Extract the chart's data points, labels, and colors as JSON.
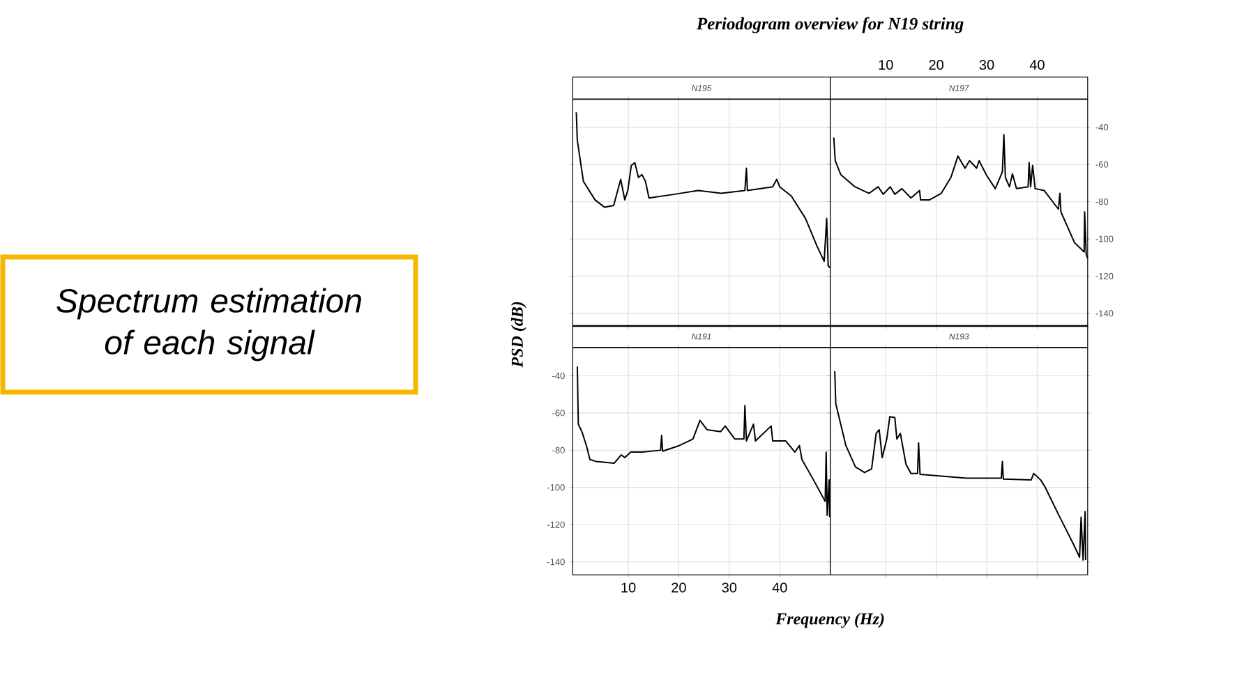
{
  "chart_data": [
    {
      "type": "line",
      "title": "N195",
      "annotations": [
        "Periodogram overview for N19 string",
        "Spectrum estimation of each signal"
      ],
      "xlim": [
        -1,
        50
      ],
      "ylim": [
        -147,
        -25
      ],
      "xticks": [
        10,
        20,
        30,
        40
      ],
      "yticks": [
        -140,
        -120,
        -100,
        -80,
        -60,
        -40
      ],
      "grid": true,
      "tick_labels": false,
      "color": "#000000",
      "x": [
        -0.3,
        -0.1,
        1.1,
        3.4,
        5.3,
        7.1,
        7.9,
        8.5,
        9.3,
        9.9,
        10.6,
        11.3,
        12,
        12.7,
        13.4,
        14.1,
        19.2,
        23.8,
        28.4,
        33.1,
        33.4,
        33.6,
        38.6,
        39.4,
        40,
        42.3,
        45.1,
        47.4,
        48.8,
        49.3,
        49.6,
        50
      ],
      "values": [
        -32,
        -47,
        -69,
        -79,
        -83,
        -82,
        -74,
        -68,
        -79,
        -74,
        -60.5,
        -59,
        -67,
        -65.5,
        -69,
        -78,
        -76,
        -74,
        -75.5,
        -74,
        -62,
        -74,
        -72,
        -68,
        -72,
        -77,
        -89,
        -104,
        -112,
        -89,
        -114.5,
        -115.5
      ]
    },
    {
      "type": "line",
      "title": "N197",
      "xlim": [
        -1,
        50
      ],
      "ylim": [
        -147,
        -25
      ],
      "xticks": [
        10,
        20,
        30,
        40
      ],
      "yticks": [
        -140,
        -120,
        -100,
        -80,
        -60,
        -40
      ],
      "grid": true,
      "color": "#000000",
      "x": [
        -0.3,
        0,
        1.1,
        3.9,
        6.7,
        8.5,
        9.5,
        10.9,
        11.8,
        13.2,
        15,
        16.7,
        16.9,
        18.7,
        21,
        22.9,
        24.3,
        25.7,
        26.6,
        28,
        28.5,
        29.9,
        31.7,
        33.1,
        33.4,
        33.7,
        34.5,
        35.1,
        35.9,
        38.2,
        38.4,
        38.7,
        39.1,
        39.6,
        41.4,
        44.2,
        44.5,
        44.7,
        47.4,
        49.3,
        49.4,
        49.7,
        50
      ],
      "values": [
        -45.5,
        -58,
        -65.5,
        -72,
        -75.5,
        -72,
        -76,
        -72,
        -76,
        -73,
        -78,
        -74,
        -79,
        -79,
        -75.5,
        -67,
        -55.5,
        -62,
        -58,
        -62,
        -58,
        -65.5,
        -73,
        -64,
        -44,
        -67,
        -72,
        -65,
        -73,
        -72,
        -59,
        -72,
        -60.5,
        -73,
        -74,
        -84,
        -75.5,
        -85.5,
        -102,
        -107,
        -85.5,
        -108,
        -110.5
      ]
    },
    {
      "type": "line",
      "title": "N191",
      "xlabel": "Frequency (Hz)",
      "ylabel": "PSD (dB)",
      "xlim": [
        -1,
        50
      ],
      "ylim": [
        -147,
        -25
      ],
      "xticks": [
        10,
        20,
        30,
        40
      ],
      "yticks": [
        -140,
        -120,
        -100,
        -80,
        -60,
        -40
      ],
      "grid": true,
      "color": "#000000",
      "x": [
        -0.1,
        0.1,
        0.8,
        1.7,
        2.4,
        3.6,
        7.2,
        8.6,
        9.3,
        10.5,
        12.8,
        16.4,
        16.6,
        16.8,
        20.1,
        22.8,
        24.2,
        25.6,
        28.3,
        29.2,
        31.1,
        32.9,
        33.1,
        33.4,
        34.8,
        35.2,
        38.3,
        38.6,
        41.2,
        43,
        43.9,
        44.4,
        46.7,
        49,
        49.2,
        49.4,
        49.8,
        49.9
      ],
      "values": [
        -35,
        -66,
        -70,
        -77.5,
        -85,
        -86,
        -87,
        -82.5,
        -84,
        -81,
        -81,
        -80,
        -72,
        -80.5,
        -77.5,
        -74,
        -64,
        -69,
        -70,
        -67,
        -74,
        -74,
        -56,
        -75,
        -66,
        -75,
        -67,
        -75,
        -75,
        -81,
        -77.5,
        -85,
        -96,
        -107.5,
        -81,
        -115,
        -96,
        -116
      ]
    },
    {
      "type": "line",
      "title": "N193",
      "xlim": [
        -1,
        50
      ],
      "ylim": [
        -147,
        -25
      ],
      "xticks": [
        10,
        20,
        30,
        40
      ],
      "yticks": [
        -140,
        -120,
        -100,
        -80,
        -60,
        -40
      ],
      "grid": true,
      "tick_labels": false,
      "color": "#000000",
      "x": [
        -0.1,
        0.1,
        2.1,
        4,
        5.8,
        7.2,
        8.1,
        8.7,
        9.3,
        10.2,
        10.8,
        11.8,
        12.2,
        12.9,
        14,
        15,
        16.3,
        16.5,
        16.8,
        21.4,
        26,
        32.9,
        33.1,
        33.3,
        38.8,
        39.3,
        40.7,
        41.6,
        44.3,
        47.1,
        48.4,
        48.7,
        49.1,
        49.5,
        49.6
      ],
      "values": [
        -37.5,
        -55,
        -77.5,
        -89,
        -92,
        -90,
        -71,
        -69,
        -84,
        -74,
        -62,
        -62.5,
        -74,
        -71,
        -87.5,
        -92.5,
        -92.5,
        -76,
        -93,
        -94,
        -95,
        -95,
        -86,
        -95.5,
        -96,
        -92.5,
        -96,
        -100,
        -115,
        -130,
        -137.5,
        -116,
        -139,
        -113,
        -139
      ]
    }
  ]
}
